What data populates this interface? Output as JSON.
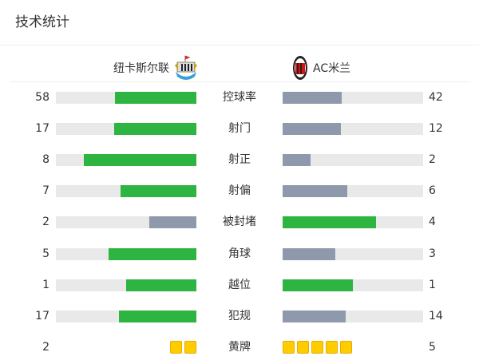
{
  "title": "技术统计",
  "teams": {
    "home": {
      "name": "纽卡斯尔联",
      "logo": "newcastle-crest"
    },
    "away": {
      "name": "AC米兰",
      "logo": "ac-milan-crest"
    }
  },
  "colors": {
    "win": "#2db441",
    "lose": "#8e99ab",
    "track": "#e9e9e9",
    "card": "#ffcc00"
  },
  "stats": [
    {
      "label": "控球率",
      "home": 58,
      "away": 42
    },
    {
      "label": "射门",
      "home": 17,
      "away": 12
    },
    {
      "label": "射正",
      "home": 8,
      "away": 2
    },
    {
      "label": "射偏",
      "home": 7,
      "away": 6
    },
    {
      "label": "被封堵",
      "home": 2,
      "away": 4
    },
    {
      "label": "角球",
      "home": 5,
      "away": 3
    },
    {
      "label": "越位",
      "home": 1,
      "away": 1
    },
    {
      "label": "犯规",
      "home": 17,
      "away": 14
    }
  ],
  "yellow_cards": {
    "label": "黄牌",
    "home": 2,
    "away": 5
  }
}
